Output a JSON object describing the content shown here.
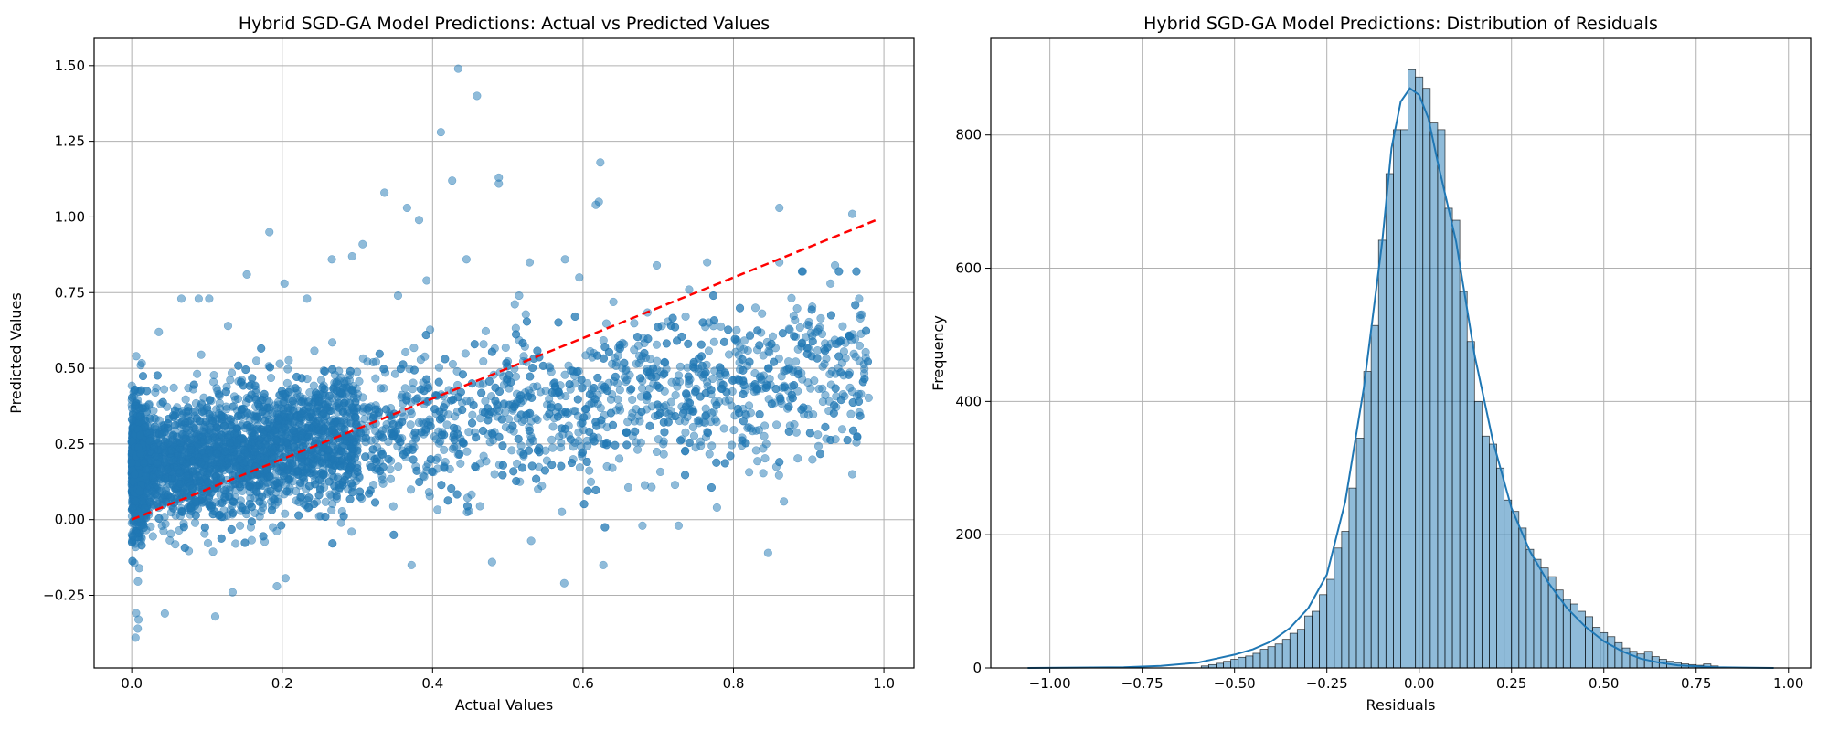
{
  "chart_data": [
    {
      "type": "scatter",
      "title": "Hybrid SGD-GA Model Predictions: Actual vs Predicted Values",
      "xlabel": "Actual Values",
      "ylabel": "Predicted Values",
      "xlim": [
        -0.05,
        1.04
      ],
      "ylim": [
        -0.49,
        1.59
      ],
      "xticks": [
        0.0,
        0.2,
        0.4,
        0.6,
        0.8,
        1.0
      ],
      "xtick_labels": [
        "0.0",
        "0.2",
        "0.4",
        "0.6",
        "0.8",
        "1.0"
      ],
      "yticks": [
        -0.25,
        0.0,
        0.25,
        0.5,
        0.75,
        1.0,
        1.25,
        1.5
      ],
      "ytick_labels": [
        "−0.25",
        "0.00",
        "0.25",
        "0.50",
        "0.75",
        "1.00",
        "1.25",
        "1.50"
      ],
      "grid": true,
      "point_color": "#1f77b4",
      "point_alpha": 0.5,
      "reference_line": {
        "x": [
          0.0,
          0.99
        ],
        "y": [
          0.0,
          0.99
        ],
        "color": "#ff0000",
        "style": "dashed"
      },
      "points": [
        [
          0.434,
          1.49
        ],
        [
          0.459,
          1.4
        ],
        [
          0.411,
          1.28
        ],
        [
          0.426,
          1.12
        ],
        [
          0.488,
          1.13
        ],
        [
          0.488,
          1.11
        ],
        [
          0.336,
          1.08
        ],
        [
          0.366,
          1.03
        ],
        [
          0.382,
          0.99
        ],
        [
          0.623,
          1.18
        ],
        [
          0.621,
          1.05
        ],
        [
          0.617,
          1.04
        ],
        [
          0.861,
          1.03
        ],
        [
          0.958,
          1.01
        ],
        [
          0.183,
          0.95
        ],
        [
          0.307,
          0.91
        ],
        [
          0.153,
          0.81
        ],
        [
          0.203,
          0.78
        ],
        [
          0.266,
          0.86
        ],
        [
          0.293,
          0.87
        ],
        [
          0.445,
          0.86
        ],
        [
          0.529,
          0.85
        ],
        [
          0.576,
          0.86
        ],
        [
          0.698,
          0.84
        ],
        [
          0.765,
          0.85
        ],
        [
          0.861,
          0.85
        ],
        [
          0.935,
          0.84
        ],
        [
          0.066,
          0.73
        ],
        [
          0.089,
          0.73
        ],
        [
          0.036,
          0.62
        ],
        [
          0.128,
          0.64
        ],
        [
          0.103,
          0.73
        ],
        [
          0.233,
          0.73
        ],
        [
          0.354,
          0.74
        ],
        [
          0.392,
          0.79
        ],
        [
          0.515,
          0.74
        ],
        [
          0.595,
          0.8
        ],
        [
          0.741,
          0.76
        ],
        [
          0.929,
          0.78
        ],
        [
          0.967,
          0.73
        ],
        [
          0.006,
          0.54
        ],
        [
          0.012,
          0.51
        ],
        [
          0.846,
          -0.11
        ],
        [
          0.575,
          -0.21
        ],
        [
          0.627,
          -0.15
        ],
        [
          0.111,
          -0.32
        ],
        [
          0.005,
          -0.39
        ],
        [
          0.008,
          -0.36
        ],
        [
          0.009,
          -0.33
        ],
        [
          0.044,
          -0.31
        ],
        [
          0.193,
          -0.22
        ],
        [
          0.134,
          -0.24
        ],
        [
          0.372,
          -0.15
        ],
        [
          0.479,
          -0.14
        ],
        [
          0.531,
          -0.07
        ],
        [
          0.679,
          -0.02
        ],
        [
          0.727,
          -0.02
        ],
        [
          0.778,
          0.04
        ],
        [
          0.867,
          0.06
        ],
        [
          0.958,
          0.15
        ]
      ]
    },
    {
      "type": "histogram",
      "title": "Hybrid SGD-GA Model Predictions: Distribution of Residuals",
      "xlabel": "Residuals",
      "ylabel": "Frequency",
      "xlim": [
        -1.16,
        1.06
      ],
      "ylim": [
        0,
        945
      ],
      "xticks": [
        -1.0,
        -0.75,
        -0.5,
        -0.25,
        0.0,
        0.25,
        0.5,
        0.75,
        1.0
      ],
      "xtick_labels": [
        "−1.00",
        "−0.75",
        "−0.50",
        "−0.25",
        "0.00",
        "0.25",
        "0.50",
        "0.75",
        "1.00"
      ],
      "yticks": [
        0,
        200,
        400,
        600,
        800
      ],
      "ytick_labels": [
        "0",
        "200",
        "400",
        "600",
        "800"
      ],
      "grid": true,
      "bar_color": "#1f77b4",
      "bar_alpha": 0.5,
      "kde": true,
      "bins": [
        [
          -0.59,
          -0.57,
          3
        ],
        [
          -0.57,
          -0.55,
          5
        ],
        [
          -0.55,
          -0.53,
          7
        ],
        [
          -0.53,
          -0.51,
          10
        ],
        [
          -0.51,
          -0.49,
          13
        ],
        [
          -0.49,
          -0.47,
          16
        ],
        [
          -0.47,
          -0.45,
          18
        ],
        [
          -0.45,
          -0.43,
          22
        ],
        [
          -0.43,
          -0.41,
          28
        ],
        [
          -0.41,
          -0.39,
          32
        ],
        [
          -0.39,
          -0.37,
          36
        ],
        [
          -0.37,
          -0.35,
          43
        ],
        [
          -0.35,
          -0.33,
          52
        ],
        [
          -0.33,
          -0.31,
          58
        ],
        [
          -0.31,
          -0.29,
          78
        ],
        [
          -0.29,
          -0.27,
          85
        ],
        [
          -0.27,
          -0.25,
          110
        ],
        [
          -0.25,
          -0.23,
          133
        ],
        [
          -0.23,
          -0.21,
          180
        ],
        [
          -0.21,
          -0.19,
          205
        ],
        [
          -0.19,
          -0.17,
          270
        ],
        [
          -0.17,
          -0.15,
          345
        ],
        [
          -0.15,
          -0.13,
          445
        ],
        [
          -0.13,
          -0.11,
          514
        ],
        [
          -0.11,
          -0.09,
          642
        ],
        [
          -0.09,
          -0.07,
          742
        ],
        [
          -0.07,
          -0.05,
          808
        ],
        [
          -0.05,
          -0.03,
          808
        ],
        [
          -0.03,
          -0.01,
          898
        ],
        [
          -0.01,
          0.01,
          887
        ],
        [
          0.01,
          0.03,
          870
        ],
        [
          0.03,
          0.05,
          818
        ],
        [
          0.05,
          0.07,
          808
        ],
        [
          0.07,
          0.09,
          690
        ],
        [
          0.09,
          0.11,
          672
        ],
        [
          0.11,
          0.13,
          565
        ],
        [
          0.13,
          0.15,
          490
        ],
        [
          0.15,
          0.17,
          400
        ],
        [
          0.17,
          0.19,
          348
        ],
        [
          0.19,
          0.21,
          336
        ],
        [
          0.21,
          0.23,
          300
        ],
        [
          0.23,
          0.25,
          252
        ],
        [
          0.25,
          0.27,
          235
        ],
        [
          0.27,
          0.29,
          210
        ],
        [
          0.29,
          0.31,
          178
        ],
        [
          0.31,
          0.33,
          163
        ],
        [
          0.33,
          0.35,
          150
        ],
        [
          0.35,
          0.37,
          137
        ],
        [
          0.37,
          0.39,
          117
        ],
        [
          0.39,
          0.41,
          103
        ],
        [
          0.41,
          0.43,
          96
        ],
        [
          0.43,
          0.45,
          85
        ],
        [
          0.45,
          0.47,
          77
        ],
        [
          0.47,
          0.49,
          61
        ],
        [
          0.49,
          0.51,
          53
        ],
        [
          0.51,
          0.53,
          47
        ],
        [
          0.53,
          0.55,
          38
        ],
        [
          0.55,
          0.57,
          30
        ],
        [
          0.57,
          0.59,
          25
        ],
        [
          0.59,
          0.61,
          21
        ],
        [
          0.61,
          0.63,
          25
        ],
        [
          0.63,
          0.65,
          17
        ],
        [
          0.65,
          0.67,
          13
        ],
        [
          0.67,
          0.69,
          10
        ],
        [
          0.69,
          0.71,
          8
        ],
        [
          0.71,
          0.73,
          6
        ],
        [
          0.73,
          0.75,
          5
        ],
        [
          0.75,
          0.77,
          4
        ],
        [
          0.77,
          0.79,
          6
        ],
        [
          0.79,
          0.81,
          3
        ]
      ],
      "kde_curve": [
        [
          -1.06,
          0
        ],
        [
          -0.8,
          1
        ],
        [
          -0.7,
          3
        ],
        [
          -0.6,
          8
        ],
        [
          -0.55,
          14
        ],
        [
          -0.5,
          20
        ],
        [
          -0.45,
          28
        ],
        [
          -0.4,
          40
        ],
        [
          -0.35,
          60
        ],
        [
          -0.3,
          90
        ],
        [
          -0.25,
          140
        ],
        [
          -0.2,
          250
        ],
        [
          -0.15,
          420
        ],
        [
          -0.1,
          640
        ],
        [
          -0.075,
          780
        ],
        [
          -0.05,
          850
        ],
        [
          -0.025,
          870
        ],
        [
          0.0,
          860
        ],
        [
          0.025,
          825
        ],
        [
          0.05,
          760
        ],
        [
          0.1,
          640
        ],
        [
          0.15,
          470
        ],
        [
          0.2,
          340
        ],
        [
          0.25,
          240
        ],
        [
          0.3,
          175
        ],
        [
          0.35,
          128
        ],
        [
          0.4,
          90
        ],
        [
          0.45,
          62
        ],
        [
          0.5,
          40
        ],
        [
          0.55,
          25
        ],
        [
          0.6,
          14
        ],
        [
          0.65,
          8
        ],
        [
          0.7,
          4
        ],
        [
          0.8,
          1
        ],
        [
          0.96,
          0
        ]
      ]
    }
  ]
}
